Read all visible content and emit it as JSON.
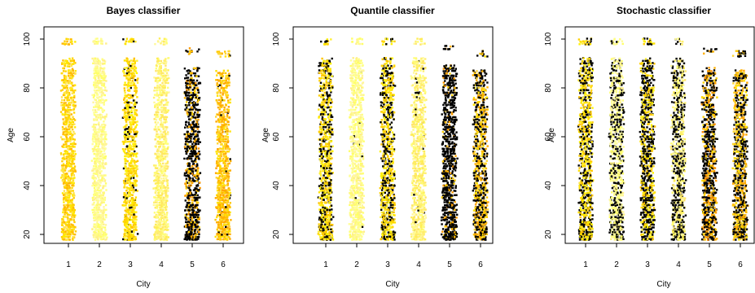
{
  "chart_data": [
    {
      "type": "scatter",
      "title": "Bayes classifier",
      "xlabel": "City",
      "ylabel": "Age",
      "x_ticks": [
        "1",
        "2",
        "3",
        "4",
        "5",
        "6"
      ],
      "y_ticks": [
        "20",
        "40",
        "60",
        "80",
        "100"
      ],
      "xlim": [
        0.5,
        6.5
      ],
      "ylim": [
        15,
        103
      ],
      "grid": false,
      "groups": [
        {
          "city": 1,
          "age_range": [
            18,
            100
          ],
          "dominant_color": "#ffd700",
          "dark_fraction": 0.0
        },
        {
          "city": 2,
          "age_range": [
            18,
            100
          ],
          "dominant_color": "#ffff99",
          "dark_fraction": 0.0
        },
        {
          "city": 3,
          "age_range": [
            18,
            100
          ],
          "dominant_color": "#ffe000",
          "dark_fraction": 0.1
        },
        {
          "city": 4,
          "age_range": [
            18,
            100
          ],
          "dominant_color": "#fff070",
          "dark_fraction": 0.0
        },
        {
          "city": 5,
          "age_range": [
            18,
            96
          ],
          "dominant_color": "#000000",
          "dark_fraction": 0.7
        },
        {
          "city": 6,
          "age_range": [
            18,
            95
          ],
          "dominant_color": "#ffc800",
          "dark_fraction": 0.02
        }
      ]
    },
    {
      "type": "scatter",
      "title": "Quantile classifier",
      "xlabel": "City",
      "ylabel": "Age",
      "x_ticks": [
        "1",
        "2",
        "3",
        "4",
        "5",
        "6"
      ],
      "y_ticks": [
        "20",
        "40",
        "60",
        "80",
        "100"
      ],
      "xlim": [
        0.5,
        6.5
      ],
      "ylim": [
        15,
        103
      ],
      "grid": false,
      "groups": [
        {
          "city": 1,
          "age_range": [
            18,
            100
          ],
          "dominant_color": "#ffe000",
          "dark_fraction": 0.35
        },
        {
          "city": 2,
          "age_range": [
            18,
            100
          ],
          "dominant_color": "#ffff99",
          "dark_fraction": 0.02
        },
        {
          "city": 3,
          "age_range": [
            18,
            100
          ],
          "dominant_color": "#ffe000",
          "dark_fraction": 0.35
        },
        {
          "city": 4,
          "age_range": [
            18,
            100
          ],
          "dominant_color": "#fff070",
          "dark_fraction": 0.03
        },
        {
          "city": 5,
          "age_range": [
            18,
            97
          ],
          "dominant_color": "#000000",
          "dark_fraction": 0.8
        },
        {
          "city": 6,
          "age_range": [
            18,
            95
          ],
          "dominant_color": "#ffc800",
          "dark_fraction": 0.45
        }
      ]
    },
    {
      "type": "scatter",
      "title": "Stochastic classifier",
      "xlabel": "City",
      "ylabel": "Age",
      "x_ticks": [
        "1",
        "2",
        "3",
        "4",
        "5",
        "6"
      ],
      "y_ticks": [
        "20",
        "40",
        "60",
        "80",
        "100"
      ],
      "xlim": [
        0.5,
        6.5
      ],
      "ylim": [
        15,
        103
      ],
      "grid": false,
      "groups": [
        {
          "city": 1,
          "age_range": [
            18,
            100
          ],
          "dominant_color": "#ffe000",
          "dark_fraction": 0.4
        },
        {
          "city": 2,
          "age_range": [
            18,
            100
          ],
          "dominant_color": "#ffff99",
          "dark_fraction": 0.4
        },
        {
          "city": 3,
          "age_range": [
            18,
            100
          ],
          "dominant_color": "#ffe000",
          "dark_fraction": 0.55
        },
        {
          "city": 4,
          "age_range": [
            18,
            100
          ],
          "dominant_color": "#fff070",
          "dark_fraction": 0.45
        },
        {
          "city": 5,
          "age_range": [
            18,
            96
          ],
          "dominant_color": "#ff9a00",
          "dark_fraction": 0.6
        },
        {
          "city": 6,
          "age_range": [
            18,
            95
          ],
          "dominant_color": "#ffc800",
          "dark_fraction": 0.5
        }
      ]
    }
  ]
}
